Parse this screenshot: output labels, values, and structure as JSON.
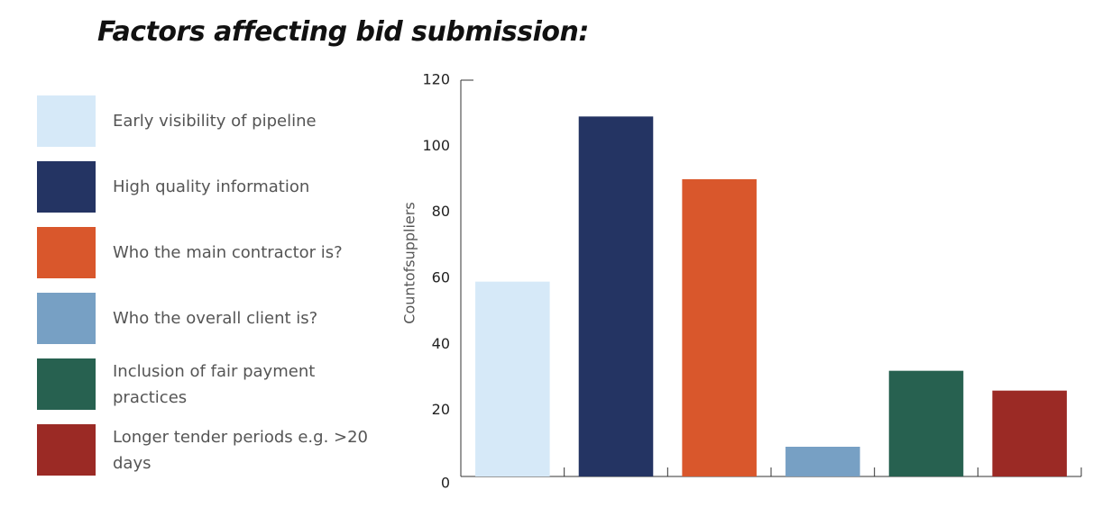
{
  "chart_data": {
    "type": "bar",
    "title": "Factors affecting bid submission:",
    "y_label": "Countofsuppliers",
    "categories": [
      "Early visibility of pipeline",
      "High quality information",
      "Who the main contractor is?",
      "Who the overall client is?",
      "Inclusion of fair payment practices",
      "Longer tender periods e.g. >20 days"
    ],
    "values": [
      59,
      109,
      90,
      9,
      32,
      26
    ],
    "colors": [
      "#d6e9f8",
      "#243463",
      "#d9572c",
      "#77a0c4",
      "#276150",
      "#9b2a25"
    ],
    "ylim": [
      0,
      120
    ],
    "yticks": [
      0,
      20,
      40,
      60,
      80,
      100,
      120
    ],
    "grid": false,
    "legend": "left"
  }
}
